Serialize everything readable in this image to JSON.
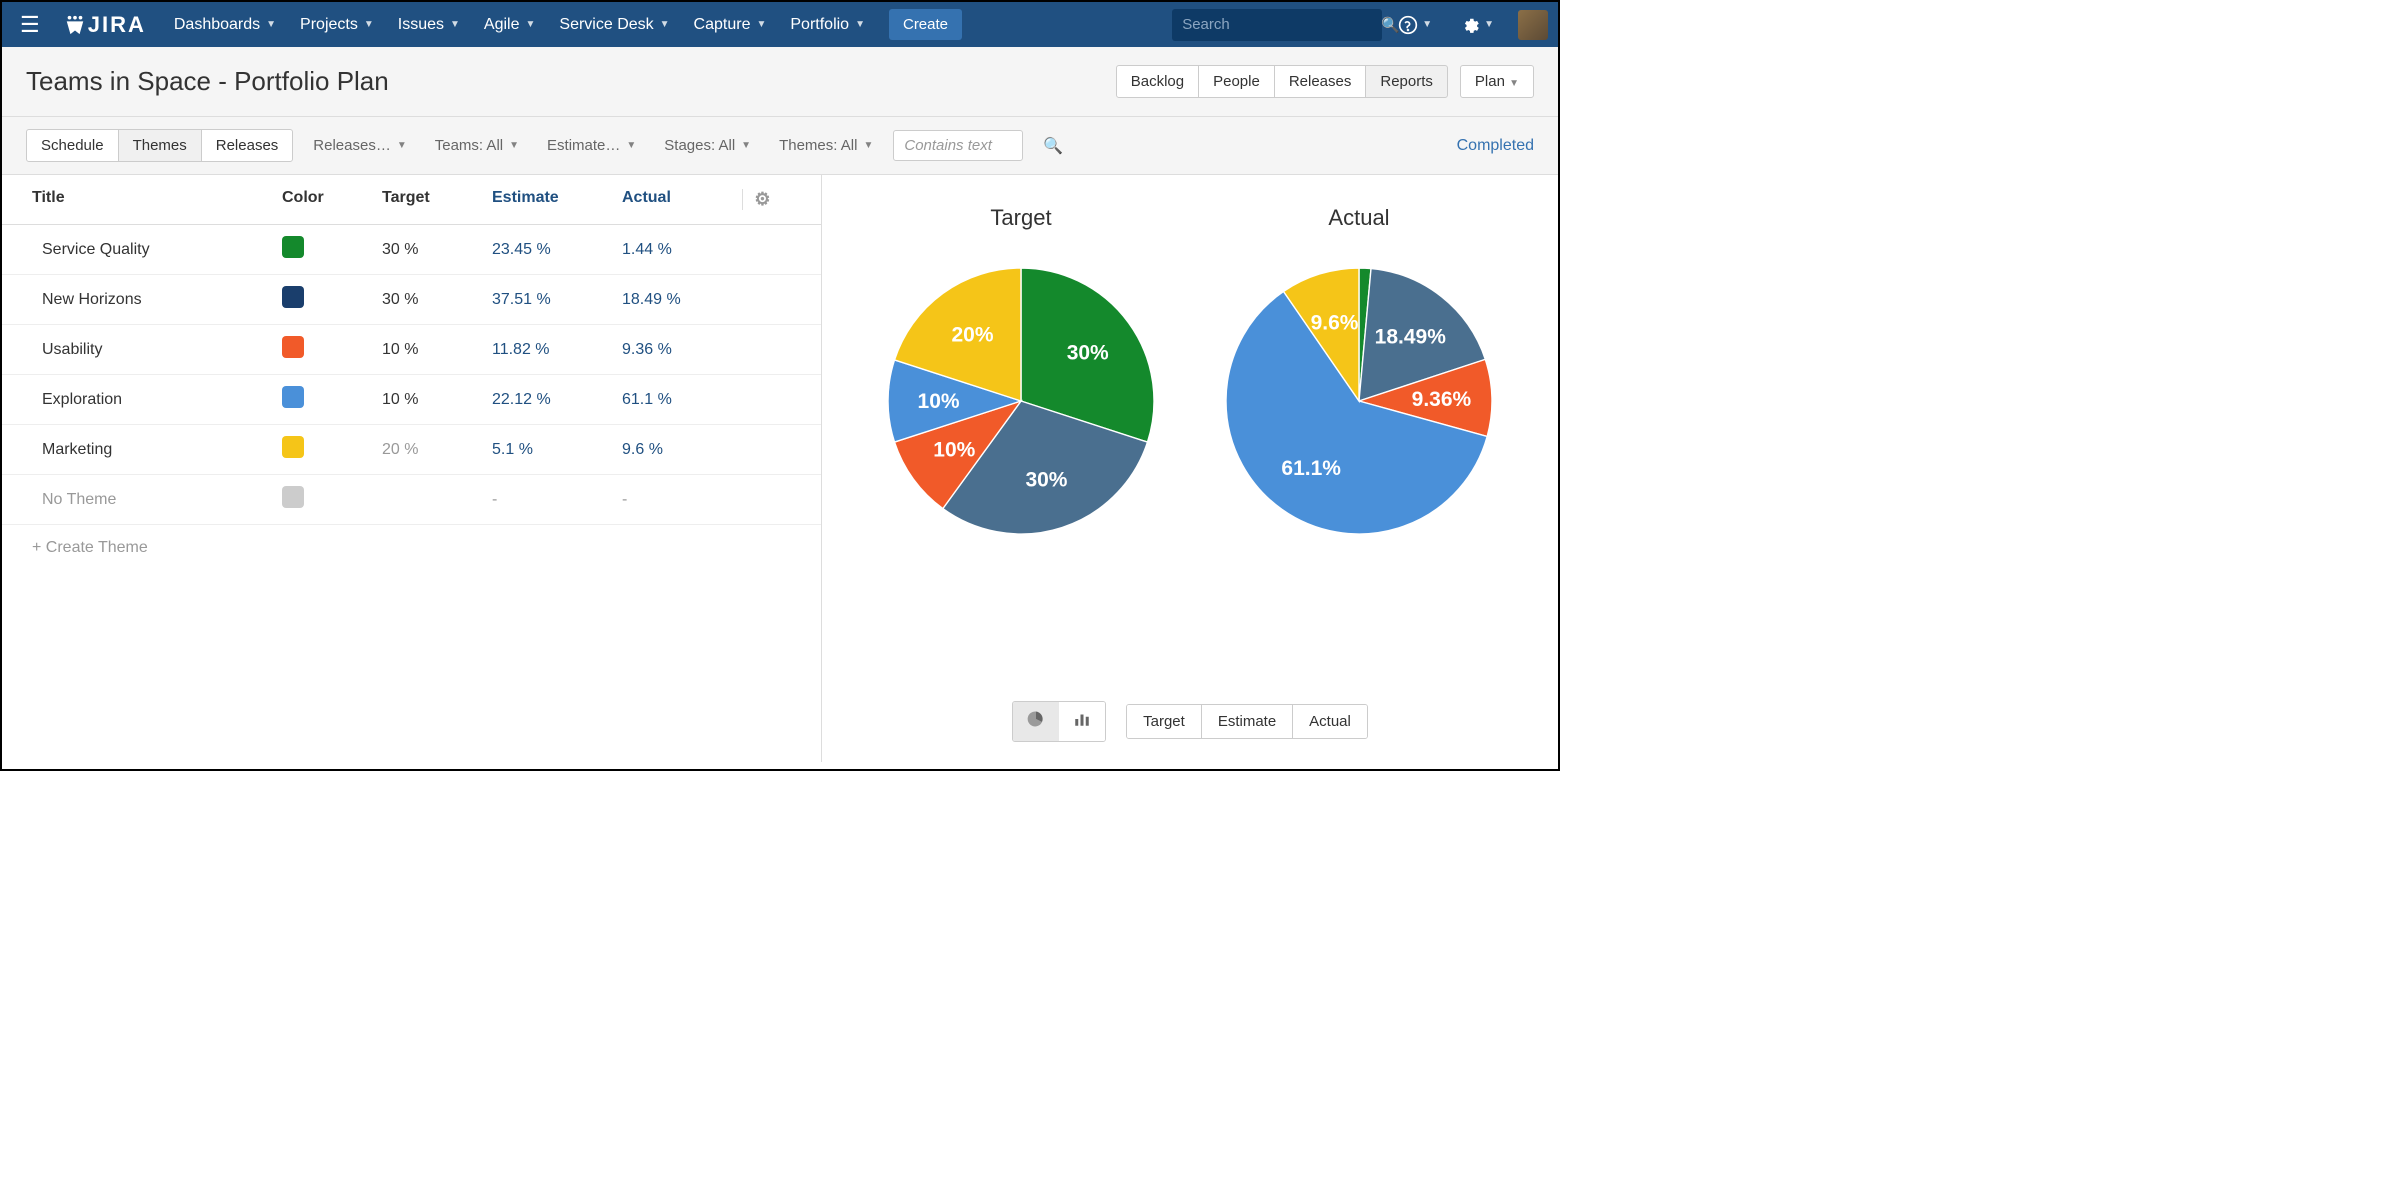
{
  "nav": {
    "items": [
      "Dashboards",
      "Projects",
      "Issues",
      "Agile",
      "Service Desk",
      "Capture",
      "Portfolio"
    ],
    "create": "Create",
    "search_placeholder": "Search"
  },
  "page": {
    "title": "Teams in Space - Portfolio Plan",
    "header_tabs": [
      "Backlog",
      "People",
      "Releases",
      "Reports"
    ],
    "plan_btn": "Plan"
  },
  "toolbar": {
    "tabs": [
      "Schedule",
      "Themes",
      "Releases"
    ],
    "active_tab": 1,
    "filters": [
      "Releases…",
      "Teams: All",
      "Estimate…",
      "Stages: All",
      "Themes: All"
    ],
    "contains_placeholder": "Contains text",
    "completed": "Completed"
  },
  "table": {
    "headers": {
      "title": "Title",
      "color": "Color",
      "target": "Target",
      "estimate": "Estimate",
      "actual": "Actual"
    },
    "rows": [
      {
        "title": "Service Quality",
        "color": "#14892c",
        "target": "30 %",
        "estimate": "23.45 %",
        "actual": "1.44 %",
        "muted": false
      },
      {
        "title": "New Horizons",
        "color": "#1a3e6c",
        "target": "30 %",
        "estimate": "37.51 %",
        "actual": "18.49 %",
        "muted": false
      },
      {
        "title": "Usability",
        "color": "#f15a29",
        "target": "10 %",
        "estimate": "11.82 %",
        "actual": "9.36 %",
        "muted": false
      },
      {
        "title": "Exploration",
        "color": "#4a90d9",
        "target": "10 %",
        "estimate": "22.12 %",
        "actual": "61.1 %",
        "muted": false
      },
      {
        "title": "Marketing",
        "color": "#f5c518",
        "target": "20 %",
        "estimate": "5.1 %",
        "actual": "9.6 %",
        "target_muted": true
      },
      {
        "title": "No Theme",
        "color": "#ccc",
        "target": "",
        "estimate": "-",
        "actual": "-",
        "muted": true
      }
    ],
    "create_theme": "+ Create Theme"
  },
  "charts": {
    "target": {
      "title": "Target",
      "slices": [
        {
          "value": 30,
          "color": "#14892c",
          "label": "30%"
        },
        {
          "value": 30,
          "color": "#4a6f8f",
          "label": "30%"
        },
        {
          "value": 10,
          "color": "#f15a29",
          "label": "10%"
        },
        {
          "value": 10,
          "color": "#4a90d9",
          "label": "10%"
        },
        {
          "value": 20,
          "color": "#f5c518",
          "label": "20%"
        }
      ]
    },
    "actual": {
      "title": "Actual",
      "slices": [
        {
          "value": 1.44,
          "color": "#14892c",
          "label": ""
        },
        {
          "value": 18.49,
          "color": "#4a6f8f",
          "label": "18.49%"
        },
        {
          "value": 9.36,
          "color": "#f15a29",
          "label": "9.36%"
        },
        {
          "value": 61.1,
          "color": "#4a90d9",
          "label": "61.1%"
        },
        {
          "value": 9.6,
          "color": "#f5c518",
          "label": "9.6%"
        }
      ]
    }
  },
  "bottom": {
    "metrics": [
      "Target",
      "Estimate",
      "Actual"
    ]
  }
}
